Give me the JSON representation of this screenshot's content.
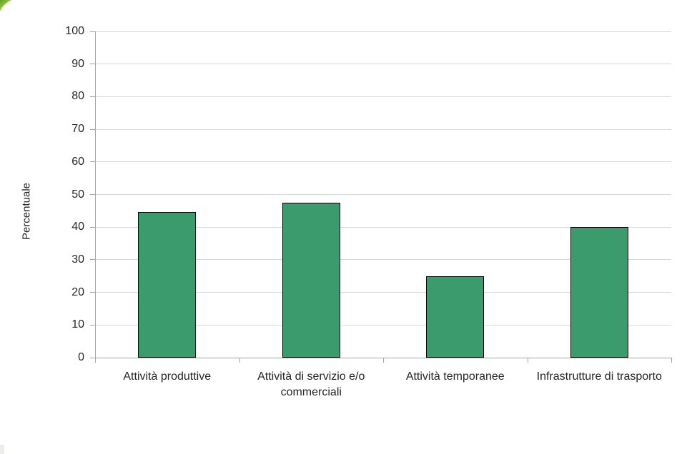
{
  "page": {
    "background": "#ffffff"
  },
  "decorations": {
    "top_left_corner": {
      "description": "small green folded-corner triangle",
      "color_dark": "#5f9e26",
      "color_light": "#c3dc82"
    },
    "bottom_left_corner": {
      "color": "#ecece9"
    }
  },
  "chart_data": {
    "type": "bar",
    "title": "",
    "xlabel": "",
    "ylabel": "Percentuale",
    "categories": [
      "Attività produttive",
      "Attività di servizio e/o commerciali",
      "Attività temporanee",
      "Infrastrutture di trasporto"
    ],
    "values": [
      44.7,
      47.4,
      25,
      40
    ],
    "y_ticks": [
      0,
      10,
      20,
      30,
      40,
      50,
      60,
      70,
      80,
      90,
      100
    ],
    "ylim": [
      0,
      100
    ],
    "grid": true,
    "legend": false,
    "bar_fill": "#3b9b6d",
    "bar_border": "#000000",
    "gridline_color": "#d9d9d9",
    "axis_color": "#a6a6a6",
    "text_color": "#262626"
  }
}
